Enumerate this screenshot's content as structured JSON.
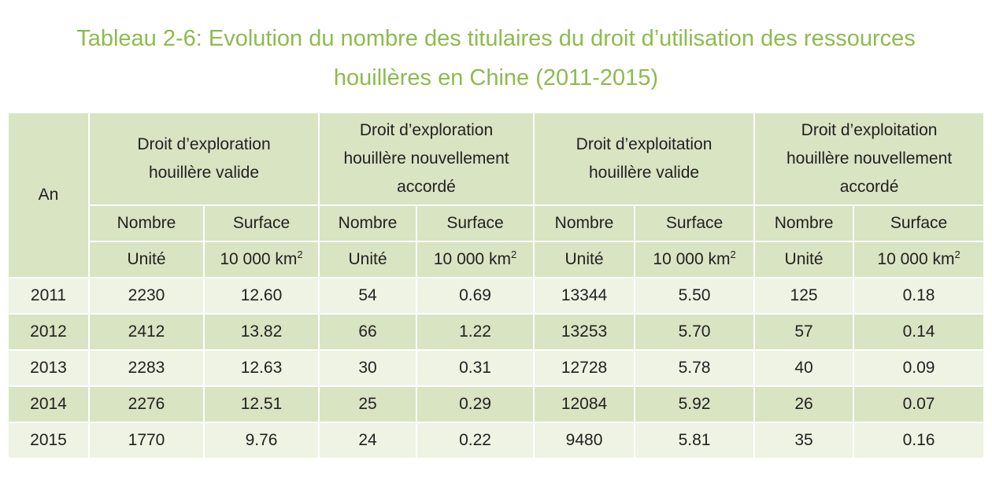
{
  "title": {
    "line1": "Tableau 2-6: Evolution du nombre des titulaires du droit d’utilisation des ressources",
    "line2": "houillères en Chine (2011-2015)"
  },
  "table": {
    "year_header": "An",
    "groups": [
      {
        "line1": "Droit d’exploration",
        "line2": "houillère valide",
        "line3": ""
      },
      {
        "line1": "Droit d’exploration",
        "line2": "houillère nouvellement",
        "line3": "accordé"
      },
      {
        "line1": "Droit d’exploitation",
        "line2": "houillère valide",
        "line3": ""
      },
      {
        "line1": "Droit d’exploitation",
        "line2": "houillère nouvellement",
        "line3": "accordé"
      }
    ],
    "sub_labels": [
      "Nombre",
      "Surface",
      "Nombre",
      "Surface",
      "Nombre",
      "Surface",
      "Nombre",
      "Surface"
    ],
    "unit_count": "Unité",
    "unit_area": "10 000 km",
    "unit_area_exp": "2",
    "rows": [
      {
        "year": "2011",
        "cells": [
          "2230",
          "12.60",
          "54",
          "0.69",
          "13344",
          "5.50",
          "125",
          "0.18"
        ]
      },
      {
        "year": "2012",
        "cells": [
          "2412",
          "13.82",
          "66",
          "1.22",
          "13253",
          "5.70",
          "57",
          "0.14"
        ]
      },
      {
        "year": "2013",
        "cells": [
          "2283",
          "12.63",
          "30",
          "0.31",
          "12728",
          "5.78",
          "40",
          "0.09"
        ]
      },
      {
        "year": "2014",
        "cells": [
          "2276",
          "12.51",
          "25",
          "0.29",
          "12084",
          "5.92",
          "26",
          "0.07"
        ]
      },
      {
        "year": "2015",
        "cells": [
          "1770",
          "9.76",
          "24",
          "0.22",
          "9480",
          "5.81",
          "35",
          "0.16"
        ]
      }
    ]
  },
  "colors": {
    "title": "#8dbb4e",
    "header_bg": "#d8e4c2",
    "row_light": "#eef3e4",
    "row_dark": "#d8e4c2"
  }
}
